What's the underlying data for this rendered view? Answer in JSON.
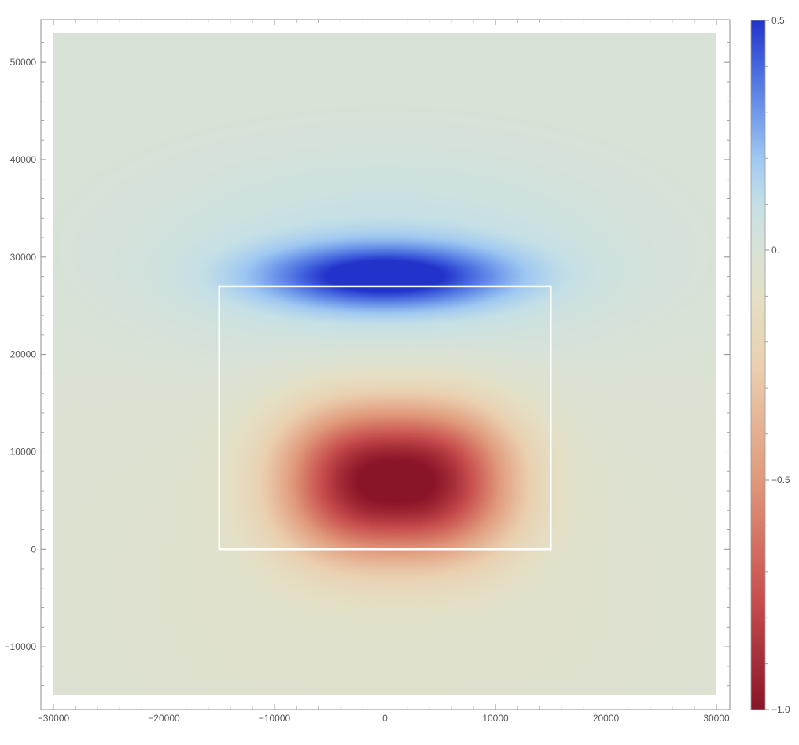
{
  "chart_data": {
    "type": "heatmap",
    "title": "",
    "xlabel": "",
    "ylabel": "",
    "xlim": [
      -30000,
      30000
    ],
    "ylim": [
      -15000,
      53000
    ],
    "x_ticks": [
      -30000,
      -20000,
      -10000,
      0,
      10000,
      20000,
      30000
    ],
    "x_tick_labels": [
      "−30000",
      "−20000",
      "−10000",
      "0",
      "10000",
      "20000",
      "30000"
    ],
    "y_ticks": [
      -10000,
      0,
      10000,
      20000,
      30000,
      40000,
      50000
    ],
    "y_tick_labels": [
      "−10000",
      "0",
      "10000",
      "20000",
      "30000",
      "40000",
      "50000"
    ],
    "value_range": [
      -1.0,
      0.5
    ],
    "colorbar": {
      "ticks": [
        -1.0,
        -0.5,
        0.0,
        0.5
      ],
      "labels": [
        "−1.0",
        "−0.5",
        "0.",
        "0.5"
      ],
      "colormap": [
        {
          "v": -1.0,
          "color": "#8a1428"
        },
        {
          "v": -0.75,
          "color": "#c9514f"
        },
        {
          "v": -0.5,
          "color": "#e0997a"
        },
        {
          "v": -0.25,
          "color": "#ead0b0"
        },
        {
          "v": -0.1,
          "color": "#e4e0c6"
        },
        {
          "v": 0.0,
          "color": "#d9e2d6"
        },
        {
          "v": 0.1,
          "color": "#c5e0e6"
        },
        {
          "v": 0.2,
          "color": "#9fc8f2"
        },
        {
          "v": 0.3,
          "color": "#6f99ea"
        },
        {
          "v": 0.4,
          "color": "#4668df"
        },
        {
          "v": 0.5,
          "color": "#2233cc"
        }
      ]
    },
    "field_features": [
      {
        "kind": "maximum",
        "x": 0,
        "y": 28000,
        "value": 0.5
      },
      {
        "kind": "minimum",
        "x": 1000,
        "y": 7000,
        "value": -1.0
      }
    ],
    "annotations": [
      {
        "type": "rectangle",
        "x": [
          -15000,
          15000
        ],
        "y": [
          0,
          27000
        ],
        "color": "#ffffff"
      }
    ],
    "grid": false
  }
}
